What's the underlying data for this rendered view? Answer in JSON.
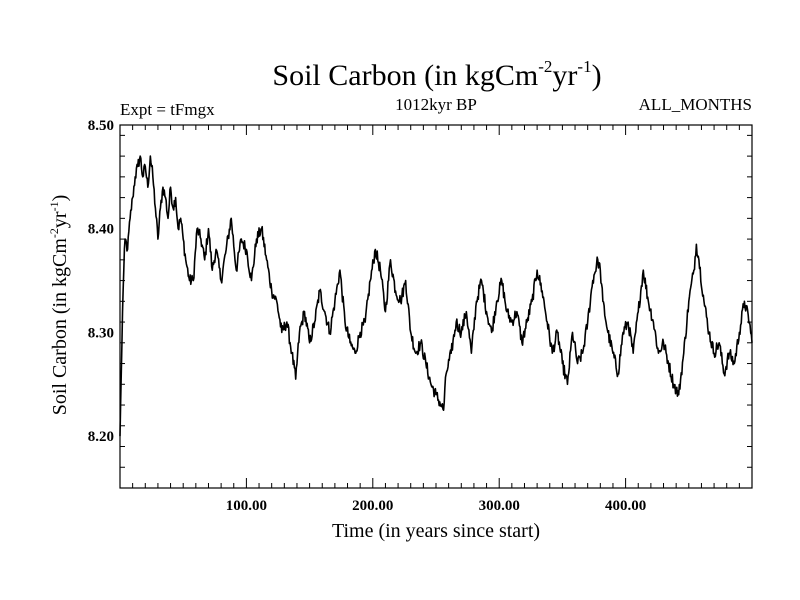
{
  "chart_data": {
    "type": "line",
    "title": {
      "base": "Soil Carbon (in kgCm",
      "exp1": "-2",
      "mid": "yr",
      "exp2": "-1",
      "close": ")"
    },
    "subtitle_left": "Expt = tFmgx",
    "subtitle_center": "1012kyr BP",
    "subtitle_right": "ALL_MONTHS",
    "xlabel": "Time (in years since start)",
    "ylabel": {
      "base": "Soil Carbon (in kgCm",
      "exp1": "-2",
      "mid": "yr",
      "exp2": "-1",
      "close": ")"
    },
    "xlim": [
      0,
      500
    ],
    "ylim": [
      8.15,
      8.5
    ],
    "xticks": [
      {
        "value": 100,
        "label": "100.00"
      },
      {
        "value": 200,
        "label": "200.00"
      },
      {
        "value": 300,
        "label": "300.00"
      },
      {
        "value": 400,
        "label": "400.00"
      }
    ],
    "yticks": [
      {
        "value": 8.2,
        "label": "8.20"
      },
      {
        "value": 8.3,
        "label": "8.30"
      },
      {
        "value": 8.4,
        "label": "8.40"
      },
      {
        "value": 8.5,
        "label": "8.50"
      }
    ],
    "series": [
      {
        "name": "Soil Carbon",
        "x": [
          0,
          1,
          2,
          3,
          4,
          6,
          8,
          10,
          12,
          14,
          16,
          18,
          20,
          22,
          24,
          26,
          28,
          30,
          32,
          34,
          36,
          38,
          40,
          42,
          44,
          46,
          48,
          50,
          52,
          55,
          58,
          61,
          64,
          67,
          70,
          73,
          76,
          80,
          84,
          88,
          92,
          96,
          100,
          104,
          108,
          112,
          116,
          120,
          124,
          128,
          132,
          136,
          139,
          142,
          146,
          150,
          154,
          158,
          162,
          166,
          170,
          174,
          178,
          182,
          186,
          190,
          194,
          198,
          202,
          206,
          210,
          214,
          218,
          222,
          226,
          230,
          234,
          238,
          242,
          246,
          250,
          254,
          256,
          258,
          262,
          266,
          270,
          274,
          278,
          282,
          286,
          290,
          294,
          298,
          302,
          306,
          310,
          314,
          318,
          322,
          326,
          330,
          334,
          338,
          342,
          346,
          350,
          354,
          358,
          362,
          366,
          370,
          374,
          378,
          380,
          382,
          386,
          390,
          394,
          398,
          402,
          406,
          410,
          414,
          418,
          422,
          426,
          430,
          434,
          438,
          442,
          446,
          450,
          454,
          456,
          458,
          462,
          466,
          470,
          474,
          478,
          482,
          486,
          490,
          494,
          498,
          500
        ],
        "y": [
          8.2,
          8.26,
          8.32,
          8.36,
          8.39,
          8.38,
          8.41,
          8.43,
          8.45,
          8.46,
          8.47,
          8.45,
          8.46,
          8.44,
          8.47,
          8.45,
          8.42,
          8.39,
          8.42,
          8.44,
          8.43,
          8.41,
          8.44,
          8.42,
          8.43,
          8.4,
          8.41,
          8.39,
          8.37,
          8.35,
          8.35,
          8.4,
          8.39,
          8.37,
          8.4,
          8.36,
          8.38,
          8.35,
          8.38,
          8.41,
          8.36,
          8.39,
          8.38,
          8.35,
          8.39,
          8.4,
          8.37,
          8.34,
          8.33,
          8.3,
          8.31,
          8.28,
          8.255,
          8.3,
          8.32,
          8.29,
          8.31,
          8.34,
          8.32,
          8.3,
          8.33,
          8.36,
          8.31,
          8.29,
          8.28,
          8.3,
          8.31,
          8.35,
          8.38,
          8.36,
          8.32,
          8.37,
          8.34,
          8.33,
          8.35,
          8.3,
          8.28,
          8.29,
          8.27,
          8.25,
          8.24,
          8.23,
          8.225,
          8.26,
          8.28,
          8.31,
          8.3,
          8.32,
          8.28,
          8.33,
          8.35,
          8.32,
          8.3,
          8.33,
          8.35,
          8.32,
          8.31,
          8.32,
          8.29,
          8.31,
          8.33,
          8.36,
          8.34,
          8.31,
          8.28,
          8.3,
          8.27,
          8.25,
          8.3,
          8.27,
          8.28,
          8.31,
          8.35,
          8.37,
          8.36,
          8.33,
          8.3,
          8.28,
          8.26,
          8.3,
          8.31,
          8.28,
          8.32,
          8.36,
          8.33,
          8.31,
          8.28,
          8.29,
          8.27,
          8.25,
          8.24,
          8.28,
          8.33,
          8.36,
          8.385,
          8.37,
          8.33,
          8.3,
          8.28,
          8.29,
          8.26,
          8.28,
          8.27,
          8.3,
          8.33,
          8.31,
          8.29
        ]
      }
    ]
  }
}
